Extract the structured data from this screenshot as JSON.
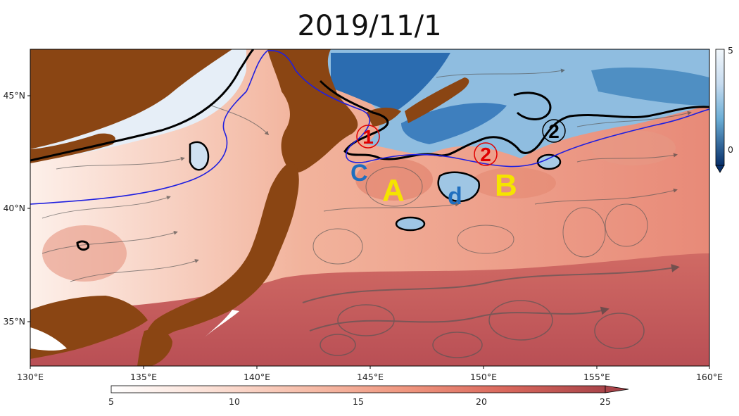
{
  "title": "2019/11/1",
  "axes": {
    "x_ticks": [
      "130°E",
      "135°E",
      "140°E",
      "145°E",
      "150°E",
      "155°E",
      "160°E"
    ],
    "y_ticks": [
      "45°N",
      "40°N",
      "35°N"
    ]
  },
  "colorbar_main": {
    "ticks": [
      "5",
      "10",
      "15",
      "20",
      "25"
    ],
    "range": [
      5,
      25
    ],
    "colors": [
      "#ffffff",
      "#fbe0d6",
      "#f6bca8",
      "#ef957e",
      "#e0705f",
      "#c95451",
      "#a94449"
    ]
  },
  "colorbar_side": {
    "ticks": [
      "5",
      "0"
    ],
    "colors": [
      "#eef4fa",
      "#c6dbef",
      "#8db9dc",
      "#4f8fc3",
      "#1f5f9f",
      "#08306b"
    ]
  },
  "annotations": {
    "eddy_A": "A",
    "eddy_B": "B",
    "eddy_C": "C",
    "eddy_d": "d",
    "marker_1": "1",
    "marker_2_red": "2",
    "marker_2_black": "2"
  },
  "colors": {
    "land": "#8a4513",
    "front_line": "#1f1fe0",
    "warm_label": "#f5e400",
    "cold_label": "#1f6fbf",
    "marker_red": "#e00000"
  }
}
